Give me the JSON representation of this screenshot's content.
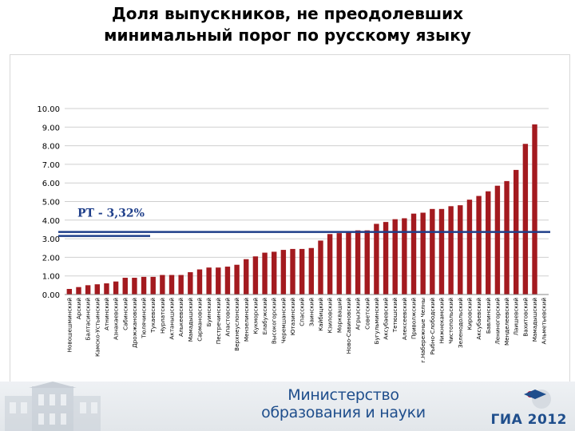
{
  "page": {
    "title_line1": "Доля выпускников, не преодолевших",
    "title_line2": "минимальный порог  по русскому языку"
  },
  "footer": {
    "ministry_line1": "Министерство",
    "ministry_line2": "образования и науки",
    "logo_text": "ГИА 2012"
  },
  "colors": {
    "bar": "#a31a1f",
    "ref_line": "#1f3f8a",
    "grid": "#cfcfcf",
    "ministry": "#1f4e8c"
  },
  "chart_data": {
    "type": "bar",
    "title": "Доля выпускников, не преодолевших минимальный порог  по русскому языку",
    "ylim": [
      0,
      10
    ],
    "yticks": [
      "0.00",
      "1.00",
      "2.00",
      "3.00",
      "4.00",
      "5.00",
      "6.00",
      "7.00",
      "8.00",
      "9.00",
      "10.00"
    ],
    "grid": true,
    "reference_line": {
      "label": "РТ - 3,32%",
      "value": 3.32
    },
    "categories": [
      "Новошешминский",
      "Арский",
      "Балтасинский",
      "Камско-Устьинский",
      "Атнинский",
      "Азнакаевский",
      "Сабинский",
      "Дрожжановский",
      "Тюлячинский",
      "Тукаевский",
      "Нурлатский",
      "Актанышский",
      "Алькеевский",
      "Мамадышский",
      "Сармановский",
      "Буинский",
      "Пестречинский",
      "Апастовский",
      "Верхнеуслонский",
      "Мензелинский",
      "Кукморский",
      "Елабужский",
      "Высокогорский",
      "Черемшанский",
      "Ютазинский",
      "Спасский",
      "Заинский",
      "Кайбицкий",
      "Кзиловский",
      "Моркваший",
      "Ново-Савиновский",
      "Агрызский",
      "Советский",
      "Бугульминский",
      "Аксубаевский",
      "Тетюшский",
      "Алексеевский",
      "Приволжский",
      "г.Набережные Челны",
      "Рыбно-Слободский",
      "Нижнекамский",
      "Чистопольский",
      "Зеленодольский",
      "Кировский",
      "Аксубаевский",
      "Бавлинский",
      "Лениногорский",
      "Менделеевский",
      "Лаишевский",
      "Вахитовский",
      "Мамадышский",
      "Альметьевский"
    ],
    "values": [
      0.3,
      0.4,
      0.5,
      0.55,
      0.6,
      0.7,
      0.9,
      0.9,
      0.95,
      0.95,
      1.05,
      1.05,
      1.05,
      1.2,
      1.35,
      1.45,
      1.45,
      1.5,
      1.6,
      1.9,
      2.05,
      2.25,
      2.3,
      2.4,
      2.45,
      2.45,
      2.5,
      2.9,
      3.25,
      3.3,
      3.4,
      3.45,
      3.45,
      3.8,
      3.9,
      4.05,
      4.1,
      4.35,
      4.4,
      4.6,
      4.6,
      4.75,
      4.8,
      5.1,
      5.3,
      5.55,
      5.85,
      6.1,
      6.7,
      8.1,
      9.15,
      0.0
    ]
  }
}
